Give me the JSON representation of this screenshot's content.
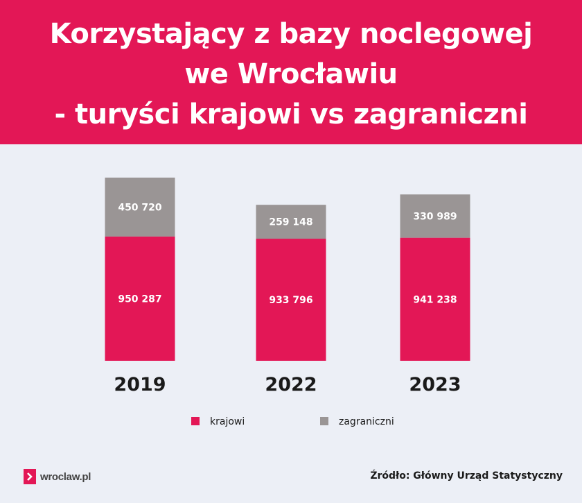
{
  "header": {
    "title_lines": [
      "Korzystający z bazy noclegowej",
      "we Wrocławiu",
      "- turyści krajowi vs zagraniczni"
    ]
  },
  "colors": {
    "krajowi": "#e31756",
    "zagraniczni": "#9a9595",
    "background": "#eceff6"
  },
  "chart_data": {
    "type": "bar",
    "stacked": true,
    "title": "Korzystający z bazy noclegowej we Wrocławiu - turyści krajowi vs zagraniczni",
    "categories": [
      "2019",
      "2022",
      "2023"
    ],
    "series": [
      {
        "name": "krajowi",
        "values": [
          950287,
          933796,
          941238
        ],
        "labels": [
          "950 287",
          "933 796",
          "941 238"
        ],
        "color": "#e31756"
      },
      {
        "name": "zagraniczni",
        "values": [
          450720,
          259148,
          330989
        ],
        "labels": [
          "450 720",
          "259 148",
          "330 989"
        ],
        "color": "#9a9595"
      }
    ],
    "legend_position": "bottom",
    "grid": false
  },
  "footer": {
    "logo_text": "wroclaw.pl",
    "source": "Źródło: Główny Urząd Statystyczny"
  }
}
